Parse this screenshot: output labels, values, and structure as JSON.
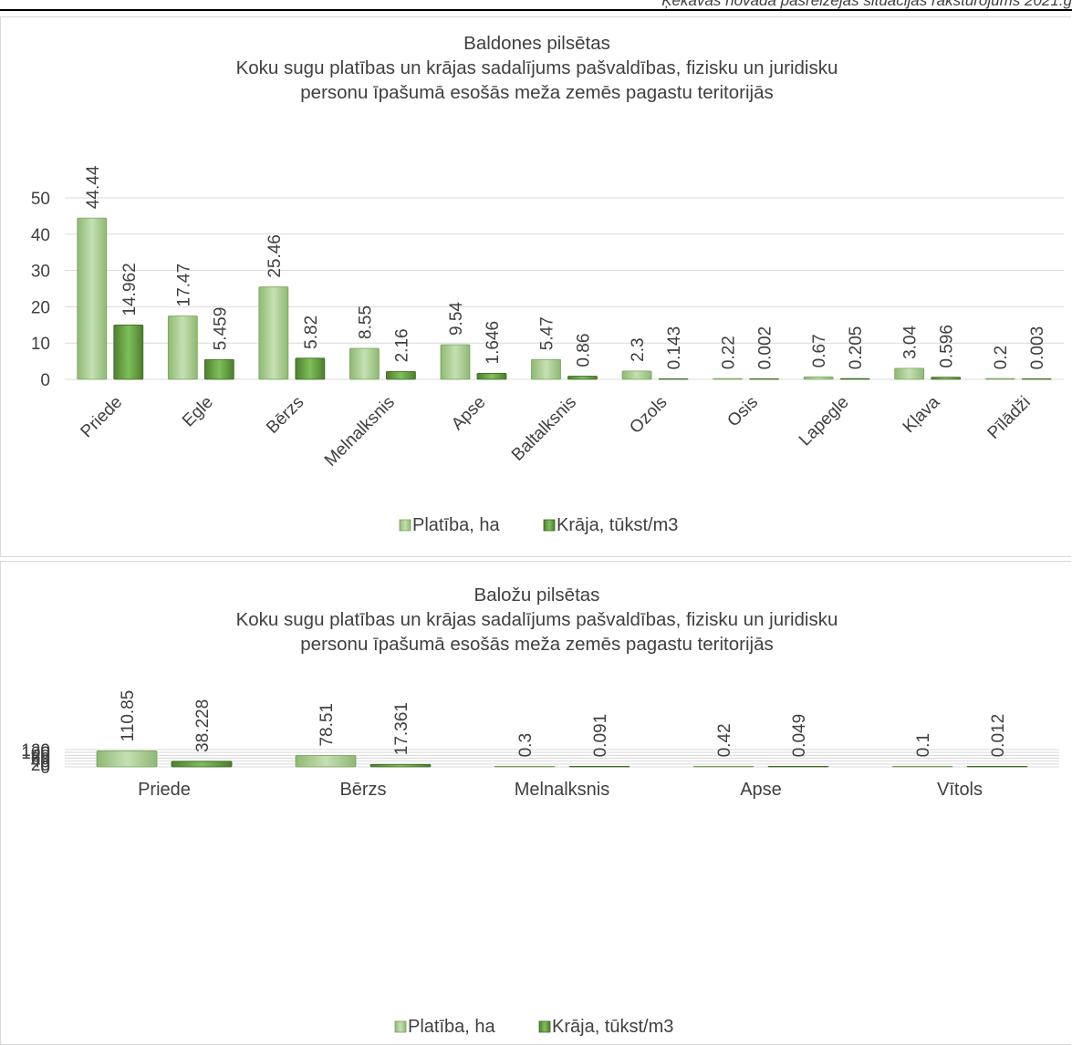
{
  "page_header": "Ķekavas novada pašreizējās situācijas raksturojums 2021.g",
  "legend_labels": [
    "Platība, ha",
    "Krāja, tūkst/m3"
  ],
  "colors": {
    "platiba": "#a9d18e",
    "kraja": "#70ad47",
    "grid": "#d9d9d9",
    "text": "#404040"
  },
  "chart_data": [
    {
      "type": "bar",
      "title_lines": [
        "Baldones pilsētas",
        "Koku sugu platības un krājas sadalījums pašvaldības, fizisku un juridisku",
        "personu īpašumā esošās meža zemēs pagastu teritorijās"
      ],
      "categories": [
        "Priede",
        "Egle",
        "Bērzs",
        "Melnalksnis",
        "Apse",
        "Baltalksnis",
        "Ozols",
        "Osis",
        "Lapegle",
        "Kļava",
        "Pīlādži"
      ],
      "series": [
        {
          "name": "Platība, ha",
          "values": [
            44.44,
            17.47,
            25.46,
            8.55,
            9.54,
            5.47,
            2.3,
            0.22,
            0.67,
            3.04,
            0.2
          ],
          "labels": [
            "44.44",
            "17.47",
            "25.46",
            "8.55",
            "9.54",
            "5.47",
            "2.3",
            "0.22",
            "0.67",
            "3.04",
            "0.2"
          ]
        },
        {
          "name": "Krāja, tūkst/m3",
          "values": [
            14.962,
            5.459,
            5.82,
            2.16,
            1.646,
            0.86,
            0.143,
            0.002,
            0.205,
            0.596,
            0.003
          ],
          "labels": [
            "14.962",
            "5.459",
            "5.82",
            "2.16",
            "1.646",
            "0.86",
            "0.143",
            "0.002",
            "0.205",
            "0.596",
            "0.003"
          ]
        }
      ],
      "ylim": [
        0,
        50
      ],
      "yticks": [
        0,
        10,
        20,
        30,
        40,
        50
      ],
      "grid": true,
      "legend": "bottom",
      "x_labels_rotated": true
    },
    {
      "type": "bar",
      "title_lines": [
        "Baložu  pilsētas",
        "Koku sugu platības un krājas sadalījums pašvaldības, fizisku un juridisku",
        "personu īpašumā esošās meža zemēs pagastu teritorijās"
      ],
      "categories": [
        "Priede",
        "Bērzs",
        "Melnalksnis",
        "Apse",
        "Vītols"
      ],
      "series": [
        {
          "name": "Platība, ha",
          "values": [
            110.85,
            78.51,
            0.3,
            0.42,
            0.1
          ],
          "labels": [
            "110.85",
            "78.51",
            "0.3",
            "0.42",
            "0.1"
          ]
        },
        {
          "name": "Krāja, tūkst/m3",
          "values": [
            38.228,
            17.361,
            0.091,
            0.049,
            0.012
          ],
          "labels": [
            "38.228",
            "17.361",
            "0.091",
            "0.049",
            "0.012"
          ]
        }
      ],
      "ylim": [
        0,
        120
      ],
      "yticks": [
        0,
        20,
        40,
        60,
        80,
        100,
        120
      ],
      "grid": true,
      "legend": "bottom",
      "x_labels_rotated": false
    }
  ]
}
